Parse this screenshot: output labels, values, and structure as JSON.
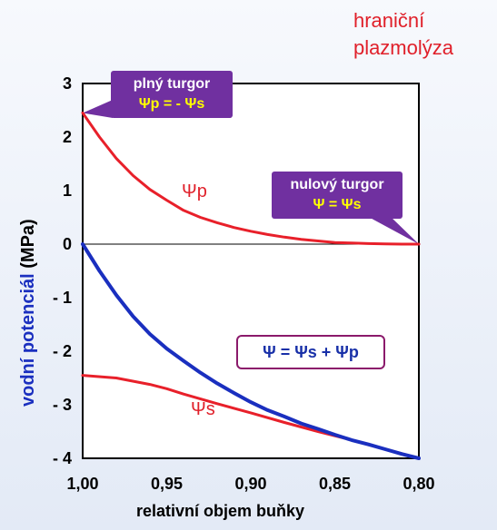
{
  "corner_label": [
    "hraniční",
    "plazmolýza"
  ],
  "callouts": {
    "full_turgor": {
      "title": "plný turgor",
      "formula": "Ψp = - Ψs"
    },
    "zero_turgor": {
      "title": "nulový turgor",
      "formula": "Ψ = Ψs"
    }
  },
  "equation": "Ψ  =  Ψs + Ψp",
  "series_labels": {
    "psi_p": "Ψp",
    "psi_s": "Ψs"
  },
  "chart_data": {
    "type": "line",
    "xlabel": "relativní objem buňky",
    "ylabel_colored": "vodní potenciál",
    "ylabel_unit": "(MPa)",
    "xlim": [
      1.0,
      0.8
    ],
    "ylim": [
      -4,
      3
    ],
    "x_ticks": [
      "1,00",
      "0,95",
      "0,90",
      "0,85",
      "0,80"
    ],
    "y_ticks": [
      "3",
      "2",
      "1",
      "0",
      "- 1",
      "- 2",
      "- 3",
      "- 4"
    ],
    "series": [
      {
        "name": "Ψp",
        "color": "#e8202a",
        "x": [
          1.0,
          0.99,
          0.98,
          0.97,
          0.96,
          0.95,
          0.94,
          0.93,
          0.92,
          0.91,
          0.9,
          0.89,
          0.88,
          0.87,
          0.86,
          0.85,
          0.84,
          0.83,
          0.82,
          0.81,
          0.8
        ],
        "y": [
          2.45,
          2.0,
          1.6,
          1.28,
          1.02,
          0.82,
          0.63,
          0.5,
          0.4,
          0.31,
          0.24,
          0.18,
          0.13,
          0.09,
          0.06,
          0.03,
          0.02,
          0.01,
          0.005,
          0.0,
          0.0
        ]
      },
      {
        "name": "Ψs",
        "color": "#e8202a",
        "x": [
          1.0,
          0.98,
          0.96,
          0.95,
          0.94,
          0.92,
          0.9,
          0.88,
          0.86,
          0.84,
          0.82,
          0.8
        ],
        "y": [
          -2.45,
          -2.5,
          -2.62,
          -2.7,
          -2.8,
          -2.98,
          -3.15,
          -3.33,
          -3.5,
          -3.66,
          -3.83,
          -4.0
        ]
      },
      {
        "name": "Ψ",
        "color": "#1a2fbf",
        "x": [
          1.0,
          0.99,
          0.98,
          0.97,
          0.96,
          0.95,
          0.94,
          0.93,
          0.92,
          0.91,
          0.9,
          0.89,
          0.88,
          0.87,
          0.86,
          0.85,
          0.84,
          0.83,
          0.82,
          0.81,
          0.8
        ],
        "y": [
          0.0,
          -0.5,
          -0.95,
          -1.35,
          -1.68,
          -1.95,
          -2.18,
          -2.4,
          -2.6,
          -2.78,
          -2.95,
          -3.1,
          -3.22,
          -3.35,
          -3.45,
          -3.56,
          -3.66,
          -3.74,
          -3.83,
          -3.92,
          -4.0
        ]
      }
    ],
    "zero_line": true
  }
}
